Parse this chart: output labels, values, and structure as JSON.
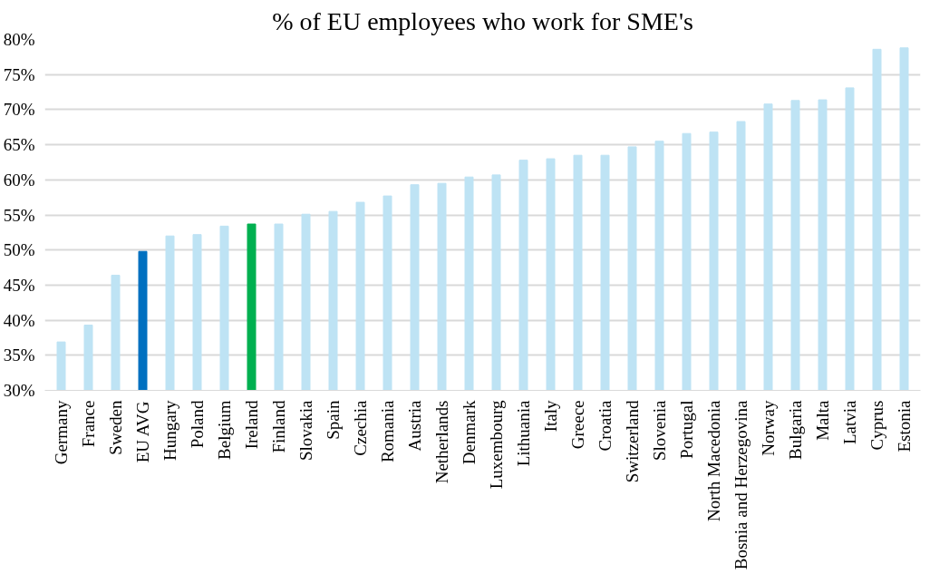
{
  "chart_data": {
    "type": "bar",
    "title": "% of EU employees who work for SME's",
    "categories": [
      "Germany",
      "France",
      "Sweden",
      "EU AVG",
      "Hungary",
      "Poland",
      "Belgium",
      "Ireland",
      "Finland",
      "Slovakia",
      "Spain",
      "Czechia",
      "Romania",
      "Austria",
      "Netherlands",
      "Denmark",
      "Luxembourg",
      "Lithuania",
      "Italy",
      "Greece",
      "Croatia",
      "Switzerland",
      "Slovenia",
      "Portugal",
      "North Macedonia",
      "Bosnia and Herzegovina",
      "Norway",
      "Bulgaria",
      "Malta",
      "Latvia",
      "Cyprus",
      "Estonia"
    ],
    "values": [
      36.9,
      39.3,
      46.4,
      49.8,
      52.0,
      52.2,
      53.4,
      53.7,
      53.7,
      55.1,
      55.5,
      56.8,
      57.7,
      59.3,
      59.5,
      60.4,
      60.7,
      62.8,
      63.0,
      63.5,
      63.5,
      64.7,
      65.5,
      66.6,
      66.8,
      68.3,
      70.8,
      71.3,
      71.4,
      73.1,
      78.6,
      78.8
    ],
    "colors": [
      "#bee3f4",
      "#bee3f4",
      "#bee3f4",
      "#0070c0",
      "#bee3f4",
      "#bee3f4",
      "#bee3f4",
      "#00b050",
      "#bee3f4",
      "#bee3f4",
      "#bee3f4",
      "#bee3f4",
      "#bee3f4",
      "#bee3f4",
      "#bee3f4",
      "#bee3f4",
      "#bee3f4",
      "#bee3f4",
      "#bee3f4",
      "#bee3f4",
      "#bee3f4",
      "#bee3f4",
      "#bee3f4",
      "#bee3f4",
      "#bee3f4",
      "#bee3f4",
      "#bee3f4",
      "#bee3f4",
      "#bee3f4",
      "#bee3f4",
      "#bee3f4",
      "#bee3f4"
    ],
    "ylim": [
      30,
      80
    ],
    "yticks": [
      {
        "value": 30,
        "label": "30%"
      },
      {
        "value": 35,
        "label": "35%"
      },
      {
        "value": 40,
        "label": "40%"
      },
      {
        "value": 45,
        "label": "45%"
      },
      {
        "value": 50,
        "label": "50%"
      },
      {
        "value": 55,
        "label": "55%"
      },
      {
        "value": 60,
        "label": "60%"
      },
      {
        "value": 65,
        "label": "65%"
      },
      {
        "value": 70,
        "label": "70%"
      },
      {
        "value": 75,
        "label": "75%"
      },
      {
        "value": 80,
        "label": "80%"
      }
    ],
    "grid": "y"
  }
}
